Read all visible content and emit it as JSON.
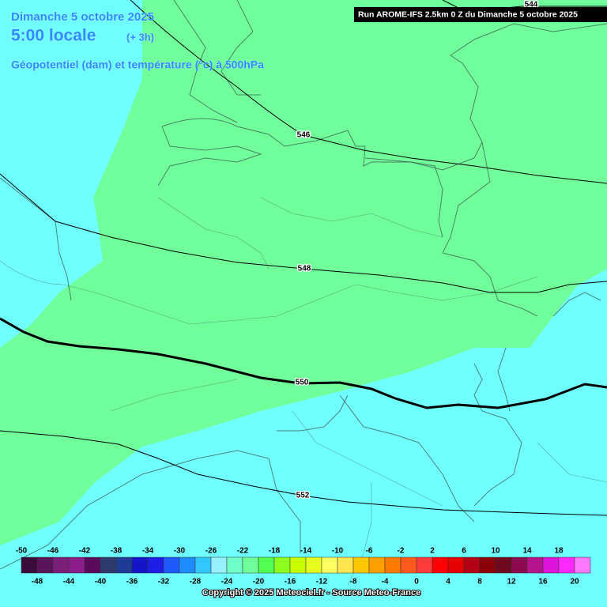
{
  "header": {
    "date": "Dimanche 5 octobre 2025",
    "time": "5:00 locale",
    "offset": "(+ 3h)",
    "field": "Géopotentiel (dam) et température (°c) à 500hPa",
    "run": "Run AROME-IFS 2.5km 0 Z du Dimanche 5 octobre 2025"
  },
  "contour_labels": [
    "544",
    "546",
    "548",
    "550",
    "552"
  ],
  "scale": {
    "top_labels": [
      -50,
      -46,
      -42,
      -38,
      -34,
      -30,
      -26,
      -22,
      -18,
      -14,
      -10,
      -6,
      -2,
      2,
      6,
      10,
      14,
      18
    ],
    "bottom_labels": [
      -48,
      -44,
      -40,
      -36,
      -32,
      -28,
      -24,
      -20,
      -16,
      -12,
      -8,
      -4,
      0,
      4,
      8,
      12,
      16,
      20
    ],
    "colors": [
      "#3a0a3a",
      "#5a145a",
      "#7a1e7a",
      "#8c1e8c",
      "#5a0a5a",
      "#2e3a6e",
      "#1e3c96",
      "#1414c8",
      "#1e1ee6",
      "#1e5aff",
      "#1e8cff",
      "#32c8ff",
      "#96f0ff",
      "#70ffc8",
      "#70ff9a",
      "#50ff50",
      "#8cff1e",
      "#c8ff00",
      "#e6ff1e",
      "#ffff64",
      "#ffe650",
      "#ffc800",
      "#ffa000",
      "#ff7800",
      "#ff5a1e",
      "#ff3c3c",
      "#ff0000",
      "#e60000",
      "#b40014",
      "#8c000a",
      "#6e0a1e",
      "#8c0a50",
      "#b4148c",
      "#dc14dc",
      "#ff28ff",
      "#ff78ff"
    ]
  },
  "footer": "Copyright © 2025 Meteociel.fr - Source Meteo-France"
}
